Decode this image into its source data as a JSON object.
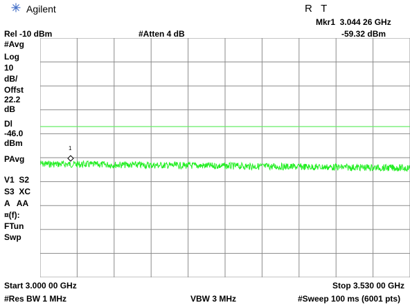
{
  "header": {
    "brand": "Agilent",
    "status": "R   T",
    "marker_label": "Mkr1  3.044 26 GHz",
    "marker_amplitude": "-59.32 dBm",
    "ref_level": "Rel -10 dBm",
    "attenuation": "#Atten 4 dB",
    "logo_color": "#4a74c9"
  },
  "sidebar": {
    "avg": "#Avg",
    "scale_type": "Log",
    "scale_value": "10",
    "scale_unit": "dB/",
    "offset_label": "Offst",
    "offset_value": "22.2",
    "offset_unit": "dB",
    "dl_label": "Dl",
    "dl_value": "-46.0",
    "dl_unit": "dBm",
    "detector": "PAvg",
    "trace_line1": "V1  S2",
    "trace_line2": "S3  XC",
    "trace_line3": "A   AA",
    "func_label": "¤(f):",
    "ftun": "FTun",
    "swp": "Swp"
  },
  "screen": {
    "marker_number": "1",
    "display_line_color": "#66ee66",
    "trace_color": "#22ee22",
    "grid_color": "#8a8a8a"
  },
  "footer": {
    "start": "Start 3.000 00 GHz",
    "stop": "Stop 3.530 00 GHz",
    "rbw": "#Res BW 1 MHz",
    "vbw": "VBW 3 MHz",
    "sweep": "#Sweep 100 ms (6001 pts)"
  }
}
